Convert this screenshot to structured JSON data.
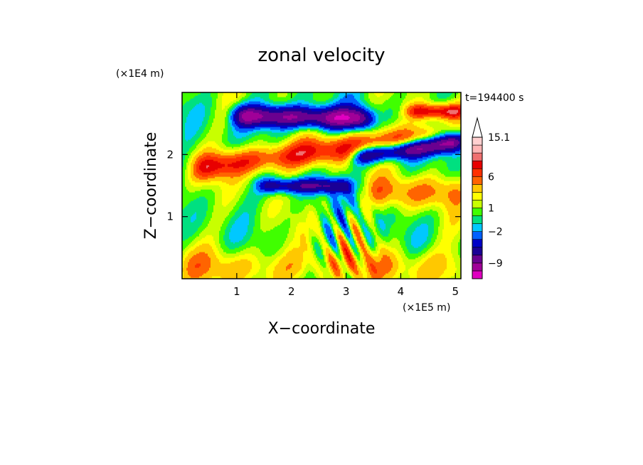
{
  "chart_data": {
    "type": "heatmap",
    "title": "zonal velocity",
    "xlabel": "X−coordinate",
    "ylabel": "Z−coordinate",
    "x_unit": "(×1E5 m)",
    "y_unit": "(×1E4 m)",
    "time_label": "t=194400 s",
    "xlim": [
      0,
      5.1
    ],
    "ylim": [
      0,
      3.0
    ],
    "x_ticks": [
      1,
      2,
      3,
      4,
      5
    ],
    "y_ticks": [
      1,
      2
    ],
    "x_tick_labels": [
      "1",
      "2",
      "3",
      "4",
      "5"
    ],
    "y_tick_labels": [
      "1",
      "2"
    ],
    "colorbar": {
      "levels": [
        -13,
        -11,
        -9,
        -7,
        -5,
        -3.5,
        -2,
        -1,
        0,
        1,
        2,
        3,
        4.5,
        6,
        7.5,
        9,
        11,
        13,
        15.1
      ],
      "colors": [
        "#e000c0",
        "#a00098",
        "#6a0090",
        "#1a0096",
        "#0000c8",
        "#0060ff",
        "#00c8ff",
        "#00e080",
        "#40ff00",
        "#c8ff00",
        "#ffff00",
        "#ffc800",
        "#ff6400",
        "#ff3000",
        "#e80000",
        "#f07070",
        "#ffb4b4",
        "#ffd0d0"
      ],
      "tick_values": [
        15.1,
        6,
        1,
        -2,
        -9
      ],
      "tick_labels": [
        "15.1",
        "6",
        "1",
        "−2",
        "−9"
      ],
      "extend_top": true
    },
    "field_bands": [
      {
        "z_center": 2.6,
        "z_tilt_per_1E5m": -0.02,
        "amplitude": -10,
        "width": 0.18,
        "x_range": [
          1.0,
          3.4
        ]
      },
      {
        "z_center": 2.7,
        "z_tilt_per_1E5m": 0.0,
        "amplitude": 8,
        "width": 0.12,
        "x_range": [
          4.2,
          5.1
        ]
      },
      {
        "z_center": 2.05,
        "z_tilt_per_1E5m": 0.12,
        "amplitude": 7,
        "width": 0.22,
        "x_range": [
          0.3,
          4.6
        ]
      },
      {
        "z_center": 1.9,
        "z_tilt_per_1E5m": 0.12,
        "amplitude": -11,
        "width": 0.15,
        "x_range": [
          3.2,
          5.1
        ]
      },
      {
        "z_center": 1.5,
        "z_tilt_per_1E5m": 0.0,
        "amplitude": -7,
        "width": 0.12,
        "x_range": [
          1.5,
          3.0
        ]
      },
      {
        "z_center": 1.4,
        "z_tilt_per_1E5m": 0.0,
        "amplitude": 4,
        "width": 0.25,
        "x_range": [
          3.5,
          5.1
        ]
      },
      {
        "z_center": 0.2,
        "z_tilt_per_1E5m": 0.0,
        "amplitude": 3,
        "width": 0.3,
        "x_range": [
          0.0,
          5.1
        ]
      }
    ]
  }
}
